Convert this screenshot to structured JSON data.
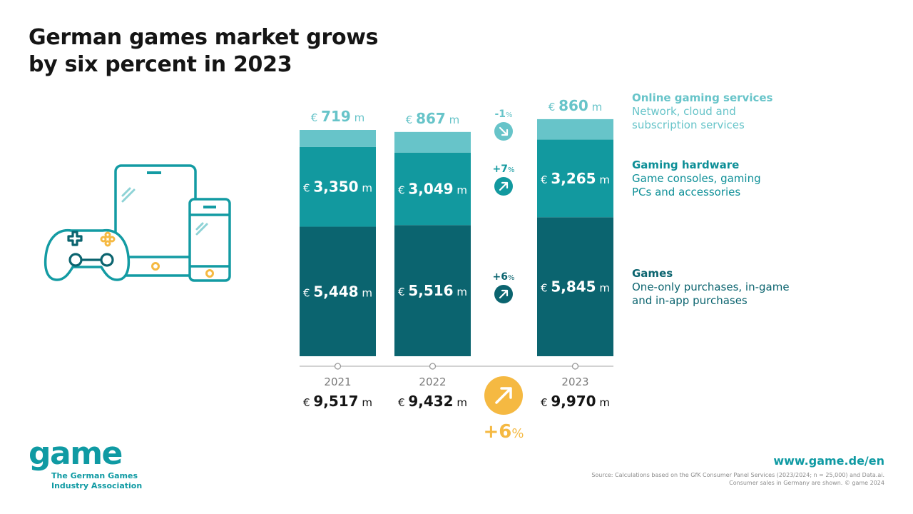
{
  "title": {
    "line1": "German games market grows",
    "line2": "by six percent in 2023"
  },
  "colors": {
    "online": "#67c4c9",
    "hardware": "#12999f",
    "games": "#0b646f",
    "accent": "#f5b942",
    "text": "#151515",
    "muted": "#8c8c8c",
    "brand": "#0f9aa3"
  },
  "legend": [
    {
      "title": "Online gaming services",
      "desc": "Network, cloud and\nsubscription services"
    },
    {
      "title": "Gaming hardware",
      "desc": "Game consoles, gaming\nPCs and accessories"
    },
    {
      "title": "Games",
      "desc": "One-only purchases, in-game\nand in-app purchases"
    }
  ],
  "chart_data": {
    "type": "bar",
    "stacked": true,
    "title": "German games market grows by six percent in 2023",
    "unit_prefix": "€",
    "unit_suffix": "m",
    "categories": [
      "2021",
      "2022",
      "2023"
    ],
    "series": [
      {
        "name": "Games",
        "values": [
          5448,
          5516,
          5845
        ],
        "labels": [
          "5,448",
          "5,516",
          "5,845"
        ]
      },
      {
        "name": "Gaming hardware",
        "values": [
          3350,
          3049,
          3265
        ],
        "labels": [
          "3,350",
          "3,049",
          "3,265"
        ]
      },
      {
        "name": "Online gaming services",
        "values": [
          719,
          867,
          860
        ],
        "labels": [
          "719",
          "867",
          "860"
        ]
      }
    ],
    "totals": {
      "values": [
        9517,
        9432,
        9970
      ],
      "labels": [
        "9,517",
        "9,432",
        "9,970"
      ]
    },
    "changes": [
      {
        "series": "Online gaming services",
        "label": "-1",
        "direction": "down"
      },
      {
        "series": "Gaming hardware",
        "label": "+7",
        "direction": "up"
      },
      {
        "series": "Games",
        "label": "+6",
        "direction": "up"
      }
    ],
    "total_change": {
      "label": "+6",
      "direction": "up"
    },
    "percent_sign": "%",
    "ylim": [
      0,
      10000
    ]
  },
  "logo": {
    "word": "game",
    "line1": "The German Games",
    "line2": "Industry Association"
  },
  "footer": {
    "website": "www.game.de/en",
    "source_line1": "Source: Calculations based on the GfK Consumer Panel Services (2023/2024; n = 25,000) and Data.ai.",
    "source_line2": "Consumer sales in Germany are shown. © game 2024"
  }
}
